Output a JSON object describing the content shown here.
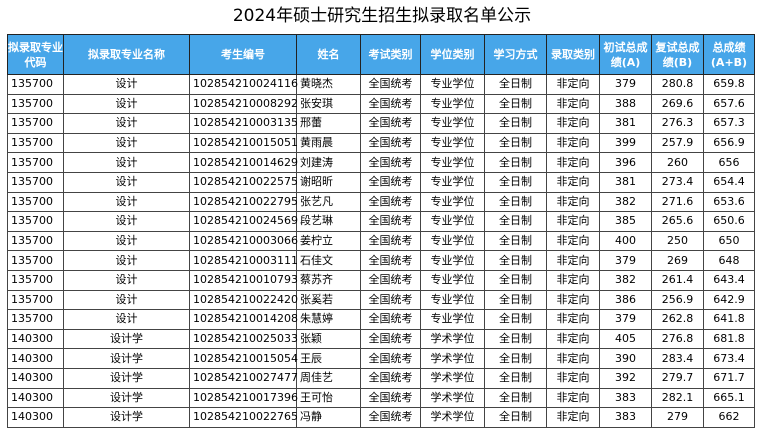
{
  "title": "2024年硕士研究生招生拟录取名单公示",
  "headers": [
    "拟录取专业代码",
    "拟录取专业名称",
    "考生编号",
    "姓名",
    "考试类别",
    "学位类别",
    "学习方式",
    "录取类别",
    "初试总成绩(A)",
    "复试总成绩(B)",
    "总成绩(A+B)"
  ],
  "header_bg": "#47a6e9",
  "rows": [
    [
      "135700",
      "设计",
      "102854210024116",
      "黄晓杰",
      "全国统考",
      "专业学位",
      "全日制",
      "非定向",
      "379",
      "280.8",
      "659.8"
    ],
    [
      "135700",
      "设计",
      "102854210008292",
      "张安琪",
      "全国统考",
      "专业学位",
      "全日制",
      "非定向",
      "388",
      "269.6",
      "657.6"
    ],
    [
      "135700",
      "设计",
      "102854210003135",
      "邢蕾",
      "全国统考",
      "专业学位",
      "全日制",
      "非定向",
      "381",
      "276.3",
      "657.3"
    ],
    [
      "135700",
      "设计",
      "102854210015051",
      "黄雨晨",
      "全国统考",
      "专业学位",
      "全日制",
      "非定向",
      "399",
      "257.9",
      "656.9"
    ],
    [
      "135700",
      "设计",
      "102854210014629",
      "刘建涛",
      "全国统考",
      "专业学位",
      "全日制",
      "非定向",
      "396",
      "260",
      "656"
    ],
    [
      "135700",
      "设计",
      "102854210022575",
      "谢昭昕",
      "全国统考",
      "专业学位",
      "全日制",
      "非定向",
      "381",
      "273.4",
      "654.4"
    ],
    [
      "135700",
      "设计",
      "102854210022795",
      "张艺凡",
      "全国统考",
      "专业学位",
      "全日制",
      "非定向",
      "382",
      "271.6",
      "653.6"
    ],
    [
      "135700",
      "设计",
      "102854210024569",
      "段艺琳",
      "全国统考",
      "专业学位",
      "全日制",
      "非定向",
      "385",
      "265.6",
      "650.6"
    ],
    [
      "135700",
      "设计",
      "102854210003066",
      "姜柠立",
      "全国统考",
      "专业学位",
      "全日制",
      "非定向",
      "400",
      "250",
      "650"
    ],
    [
      "135700",
      "设计",
      "102854210003111",
      "石佳文",
      "全国统考",
      "专业学位",
      "全日制",
      "非定向",
      "379",
      "269",
      "648"
    ],
    [
      "135700",
      "设计",
      "102854210010793",
      "蔡苏齐",
      "全国统考",
      "专业学位",
      "全日制",
      "非定向",
      "382",
      "261.4",
      "643.4"
    ],
    [
      "135700",
      "设计",
      "102854210022420",
      "张奚若",
      "全国统考",
      "专业学位",
      "全日制",
      "非定向",
      "386",
      "256.9",
      "642.9"
    ],
    [
      "135700",
      "设计",
      "102854210014208",
      "朱慧婷",
      "全国统考",
      "专业学位",
      "全日制",
      "非定向",
      "379",
      "262.8",
      "641.8"
    ],
    [
      "140300",
      "设计学",
      "102854210025033",
      "张颖",
      "全国统考",
      "学术学位",
      "全日制",
      "非定向",
      "405",
      "276.8",
      "681.8"
    ],
    [
      "140300",
      "设计学",
      "102854210015054",
      "王辰",
      "全国统考",
      "学术学位",
      "全日制",
      "非定向",
      "390",
      "283.4",
      "673.4"
    ],
    [
      "140300",
      "设计学",
      "102854210027477",
      "周佳艺",
      "全国统考",
      "学术学位",
      "全日制",
      "非定向",
      "392",
      "279.7",
      "671.7"
    ],
    [
      "140300",
      "设计学",
      "102854210017396",
      "王可怡",
      "全国统考",
      "学术学位",
      "全日制",
      "非定向",
      "383",
      "282.1",
      "665.1"
    ],
    [
      "140300",
      "设计学",
      "102854210022765",
      "冯静",
      "全国统考",
      "学术学位",
      "全日制",
      "非定向",
      "383",
      "279",
      "662"
    ]
  ]
}
